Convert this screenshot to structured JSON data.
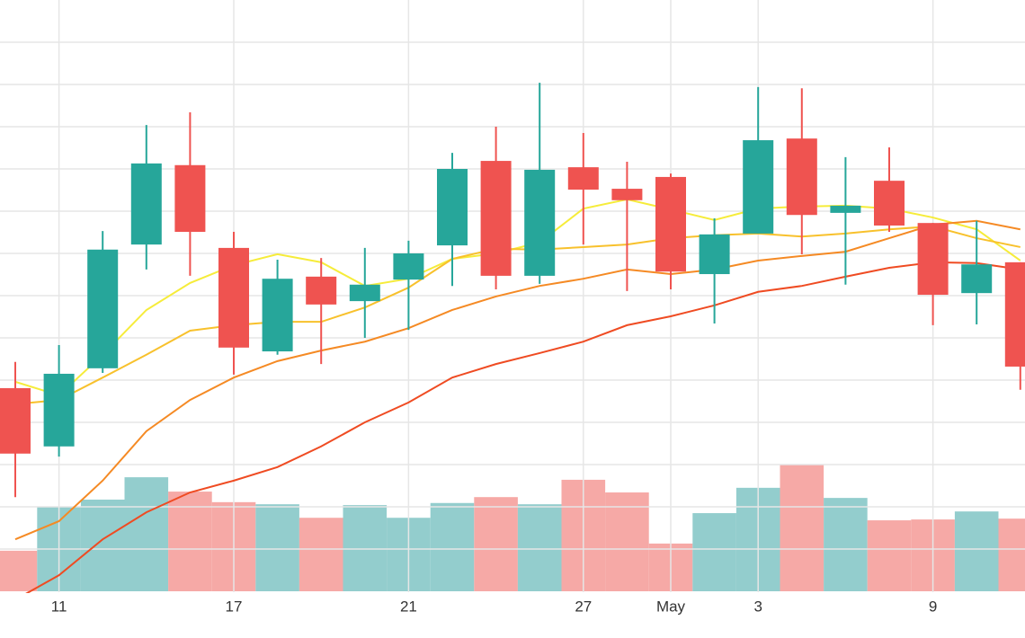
{
  "chart_data": {
    "type": "candlestick",
    "categories": [
      null,
      "11",
      null,
      null,
      null,
      "17",
      null,
      null,
      null,
      "21",
      null,
      null,
      null,
      "27",
      null,
      "May",
      null,
      "3",
      null,
      null,
      null,
      "9",
      null,
      null
    ],
    "open": [
      4.81,
      3.43,
      5.28,
      8.21,
      10.09,
      8.13,
      5.68,
      7.45,
      6.87,
      7.38,
      8.19,
      10.19,
      7.47,
      10.04,
      9.53,
      9.81,
      7.51,
      8.47,
      10.72,
      8.96,
      9.72,
      8.72,
      7.06,
      7.79
    ],
    "high": [
      5.43,
      5.83,
      8.53,
      11.04,
      11.34,
      8.51,
      7.85,
      7.89,
      8.13,
      8.3,
      10.38,
      11.0,
      12.04,
      10.85,
      10.17,
      9.89,
      8.83,
      11.94,
      11.91,
      10.28,
      10.51,
      8.72,
      8.77,
      7.79
    ],
    "low": [
      2.23,
      3.19,
      5.17,
      7.62,
      7.47,
      5.13,
      5.6,
      5.38,
      6.0,
      6.19,
      7.23,
      7.15,
      7.28,
      8.21,
      7.11,
      7.15,
      6.34,
      8.47,
      7.98,
      7.26,
      8.51,
      6.3,
      6.32,
      4.77
    ],
    "close": [
      3.26,
      5.15,
      8.09,
      10.13,
      8.51,
      5.77,
      7.4,
      6.79,
      7.26,
      8.0,
      10.0,
      7.47,
      9.98,
      9.51,
      9.26,
      7.57,
      8.45,
      10.68,
      8.91,
      9.13,
      8.66,
      7.02,
      7.74,
      5.32
    ],
    "volume": [
      0.96,
      2.0,
      2.17,
      2.7,
      2.36,
      2.11,
      2.06,
      1.74,
      2.04,
      1.74,
      2.09,
      2.23,
      2.06,
      2.64,
      2.34,
      1.13,
      1.85,
      2.45,
      3.0,
      2.21,
      1.68,
      1.7,
      1.89,
      1.72
    ],
    "moving_averages": [
      {
        "color": "#f6ec3a",
        "values": [
          4.96,
          4.64,
          5.6,
          6.66,
          7.3,
          7.72,
          7.98,
          7.79,
          7.23,
          7.4,
          7.87,
          8.0,
          8.26,
          9.06,
          9.28,
          9.04,
          8.79,
          9.06,
          9.11,
          9.13,
          9.06,
          8.85,
          8.57,
          7.83
        ]
      },
      {
        "color": "#f8c12c",
        "values": [
          4.43,
          4.53,
          5.06,
          5.6,
          6.17,
          6.3,
          6.38,
          6.38,
          6.72,
          7.19,
          7.87,
          8.11,
          8.09,
          8.15,
          8.21,
          8.36,
          8.43,
          8.47,
          8.4,
          8.47,
          8.57,
          8.64,
          8.36,
          8.15
        ]
      },
      {
        "color": "#f58a24",
        "values": [
          1.23,
          1.66,
          2.62,
          3.79,
          4.53,
          5.06,
          5.45,
          5.7,
          5.91,
          6.23,
          6.66,
          6.98,
          7.23,
          7.4,
          7.62,
          7.51,
          7.62,
          7.83,
          7.94,
          8.04,
          8.36,
          8.68,
          8.77,
          8.57
        ]
      },
      {
        "color": "#ef4b22",
        "values": [
          -0.2,
          0.38,
          1.23,
          1.87,
          2.34,
          2.62,
          2.94,
          3.43,
          4.0,
          4.47,
          5.06,
          5.38,
          5.64,
          5.91,
          6.3,
          6.51,
          6.77,
          7.09,
          7.23,
          7.45,
          7.66,
          7.79,
          7.77,
          7.62
        ]
      }
    ],
    "up_color": "#26a69a",
    "down_color": "#ef5350",
    "volume_up_color": "#93cdcd",
    "volume_down_color": "#f6a9a6",
    "ylim": [
      0,
      14
    ],
    "yticks": [
      1,
      2,
      3,
      4,
      5,
      6,
      7,
      8,
      9,
      10,
      11,
      12,
      13
    ],
    "grid": true
  }
}
